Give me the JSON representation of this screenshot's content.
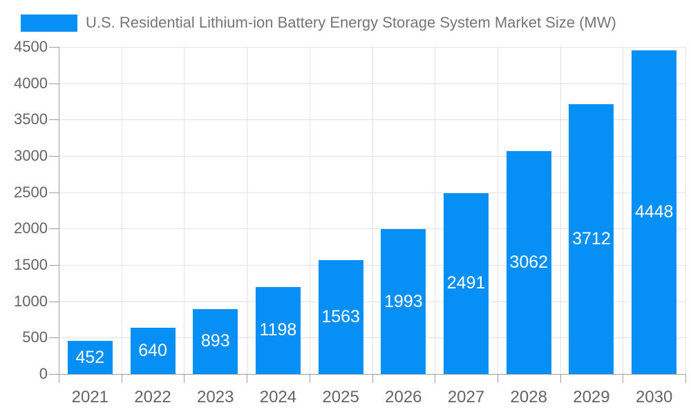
{
  "legend": {
    "swatch_color": "#0690f6",
    "label": "U.S. Residential Lithium-ion Battery Energy Storage System Market Size (MW)"
  },
  "colors": {
    "bar": "#0690f6",
    "gridline": "#e2e2e2",
    "axis_line": "#9e9e9e",
    "axis_label_text": "#646464",
    "title_text": "#757575",
    "value_label_text": "#ffffff"
  },
  "chart_data": {
    "type": "bar",
    "title": "U.S. Residential Lithium-ion Battery Energy Storage System Market Size (MW)",
    "categories": [
      "2021",
      "2022",
      "2023",
      "2024",
      "2025",
      "2026",
      "2027",
      "2028",
      "2029",
      "2030"
    ],
    "values": [
      452,
      640,
      893,
      1198,
      1563,
      1993,
      2491,
      3062,
      3712,
      4448
    ],
    "value_labels": [
      "452",
      "640",
      "893",
      "1198",
      "1563",
      "1993",
      "2491",
      "3062",
      "3712",
      "4448"
    ],
    "xlabel": "",
    "ylabel": "",
    "ylim": [
      0,
      4500
    ],
    "ytick_step": 500,
    "yticks": [
      0,
      500,
      1000,
      1500,
      2000,
      2500,
      3000,
      3500,
      4000,
      4500
    ],
    "grid": true,
    "legend_position": "top-left",
    "value_label_position": "inside-center",
    "bar_color": "#0690f6",
    "series": [
      {
        "name": "U.S. Residential Lithium-ion Battery Energy Storage System Market Size (MW)",
        "values": [
          452,
          640,
          893,
          1198,
          1563,
          1993,
          2491,
          3062,
          3712,
          4448
        ]
      }
    ]
  }
}
